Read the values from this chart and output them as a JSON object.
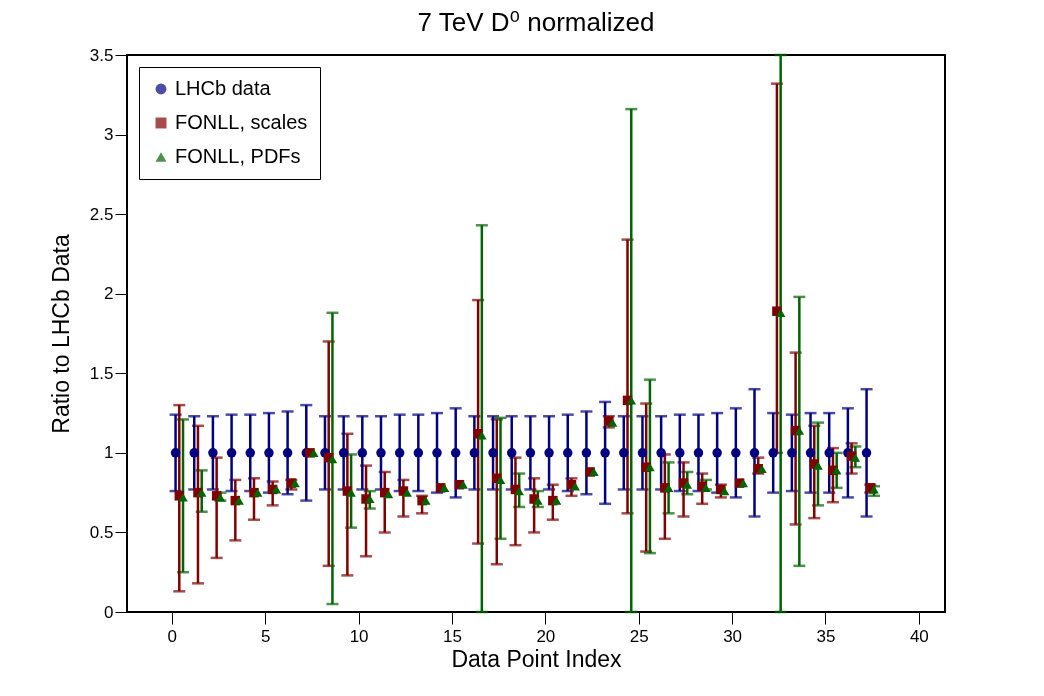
{
  "chart_data": {
    "type": "scatter",
    "title": "7 TeV D⁰ normalized",
    "xlabel": "Data Point Index",
    "ylabel": "Ratio to LHCb Data",
    "xlim": [
      -2.4,
      41.4
    ],
    "xticks": [
      0,
      5,
      10,
      15,
      20,
      25,
      30,
      35,
      40
    ],
    "ylim": [
      0,
      3.5
    ],
    "yticks": [
      0,
      0.5,
      1,
      1.5,
      2,
      2.5,
      3,
      3.5
    ],
    "grid": false,
    "legend": "top left",
    "series": [
      {
        "name": "LHCb data",
        "color": "#000080",
        "marker": "circle",
        "x": [
          0.2,
          1.2,
          2.2,
          3.2,
          4.2,
          5.2,
          6.2,
          7.2,
          8.2,
          9.2,
          10.2,
          11.2,
          12.2,
          13.2,
          14.2,
          15.2,
          16.2,
          17.2,
          18.2,
          19.2,
          20.2,
          21.2,
          22.2,
          23.2,
          24.2,
          25.2,
          26.2,
          27.2,
          28.2,
          29.2,
          30.2,
          31.2,
          32.2,
          33.2,
          34.2,
          35.2,
          36.2,
          37.2
        ],
        "values": [
          1,
          1,
          1,
          1,
          1,
          1,
          1,
          1,
          1,
          1,
          1,
          1,
          1,
          1,
          1,
          1,
          1,
          1,
          1,
          1,
          1,
          1,
          1,
          1,
          1,
          1,
          1,
          1,
          1,
          1,
          1,
          1,
          1,
          1,
          1,
          1,
          1,
          1
        ],
        "errors": [
          0.24,
          0.23,
          0.23,
          0.24,
          0.24,
          0.25,
          0.26,
          0.3,
          0.23,
          0.23,
          0.23,
          0.23,
          0.24,
          0.24,
          0.25,
          0.28,
          0.23,
          0.23,
          0.23,
          0.23,
          0.23,
          0.24,
          0.26,
          0.32,
          0.23,
          0.23,
          0.23,
          0.24,
          0.24,
          0.25,
          0.28,
          0.4,
          0.25,
          0.24,
          0.25,
          0.25,
          0.28,
          0.4
        ]
      },
      {
        "name": "FONLL, scales",
        "color": "#800000",
        "marker": "square",
        "x": [
          0.4,
          1.4,
          2.4,
          3.4,
          4.4,
          5.4,
          6.4,
          7.4,
          8.4,
          9.4,
          10.4,
          11.4,
          12.4,
          13.4,
          14.4,
          15.4,
          16.4,
          17.4,
          18.4,
          19.4,
          20.4,
          21.4,
          22.4,
          23.4,
          24.4,
          25.4,
          26.4,
          27.4,
          28.4,
          29.4,
          30.4,
          31.4,
          32.4,
          33.4,
          34.4,
          35.4,
          36.4,
          37.4
        ],
        "values": [
          0.73,
          0.75,
          0.73,
          0.7,
          0.75,
          0.77,
          0.81,
          1.0,
          0.97,
          0.76,
          0.71,
          0.75,
          0.76,
          0.7,
          0.78,
          0.8,
          1.12,
          0.84,
          0.77,
          0.71,
          0.7,
          0.8,
          0.88,
          1.2,
          1.33,
          0.91,
          0.78,
          0.81,
          0.79,
          0.77,
          0.81,
          0.9,
          1.89,
          1.14,
          0.93,
          0.89,
          0.98,
          0.78
        ],
        "errors": [
          [
            0.13,
            1.3
          ],
          [
            0.18,
            1.17
          ],
          [
            0.34,
            0.97
          ],
          [
            0.45,
            0.83
          ],
          [
            0.58,
            0.84
          ],
          [
            0.67,
            0.82
          ],
          [
            0.77,
            0.83
          ],
          null,
          [
            0.29,
            1.7
          ],
          [
            0.23,
            1.12
          ],
          [
            0.35,
            0.92
          ],
          [
            0.5,
            0.88
          ],
          [
            0.6,
            0.83
          ],
          [
            0.62,
            0.73
          ],
          null,
          null,
          [
            0.43,
            1.96
          ],
          [
            0.3,
            1.21
          ],
          [
            0.42,
            0.97
          ],
          [
            0.5,
            0.84
          ],
          [
            0.58,
            0.8
          ],
          [
            0.73,
            0.84
          ],
          null,
          [
            1.16,
            1.23
          ],
          [
            0.62,
            2.34
          ],
          [
            0.38,
            1.31
          ],
          [
            0.46,
            0.99
          ],
          [
            0.6,
            0.94
          ],
          [
            0.68,
            0.87
          ],
          [
            0.72,
            0.8
          ],
          null,
          [
            0.87,
            0.97
          ],
          [
            1.0,
            3.32
          ],
          [
            0.55,
            1.63
          ],
          [
            0.59,
            1.17
          ],
          [
            0.69,
            1.03
          ],
          [
            0.87,
            1.06
          ],
          [
            0.75,
            0.8
          ]
        ]
      },
      {
        "name": "FONLL, PDFs",
        "color": "#006400",
        "marker": "triangle",
        "x": [
          0.6,
          1.6,
          2.6,
          3.6,
          4.6,
          5.6,
          6.6,
          7.6,
          8.6,
          9.6,
          10.6,
          11.6,
          12.6,
          13.6,
          14.6,
          15.6,
          16.6,
          17.6,
          18.6,
          19.6,
          20.6,
          21.6,
          22.6,
          23.6,
          24.6,
          25.6,
          26.6,
          27.6,
          28.6,
          29.6,
          30.6,
          31.6,
          32.6,
          33.6,
          34.6,
          35.6,
          36.6,
          37.6
        ],
        "values": [
          0.72,
          0.75,
          0.72,
          0.7,
          0.75,
          0.77,
          0.81,
          1.0,
          0.96,
          0.75,
          0.71,
          0.74,
          0.75,
          0.7,
          0.78,
          0.8,
          1.11,
          0.83,
          0.76,
          0.7,
          0.7,
          0.79,
          0.88,
          1.19,
          1.33,
          0.91,
          0.78,
          0.8,
          0.78,
          0.76,
          0.81,
          0.9,
          1.88,
          1.14,
          0.92,
          0.89,
          0.97,
          0.77
        ],
        "errors": [
          [
            0.25,
            1.21
          ],
          [
            0.63,
            0.89
          ],
          [
            0.7,
            0.75
          ],
          null,
          null,
          null,
          null,
          null,
          [
            0.05,
            1.88
          ],
          [
            0.53,
            0.99
          ],
          [
            0.65,
            0.76
          ],
          null,
          null,
          null,
          null,
          null,
          [
            0,
            2.43
          ],
          [
            0.46,
            1.22
          ],
          [
            0.66,
            0.87
          ],
          [
            0.66,
            0.76
          ],
          null,
          null,
          null,
          null,
          [
            0,
            3.16
          ],
          [
            0.37,
            1.46
          ],
          [
            0.62,
            0.94
          ],
          [
            0.74,
            0.88
          ],
          [
            0.77,
            0.83
          ],
          null,
          null,
          null,
          [
            0,
            3.5
          ],
          [
            0.29,
            1.98
          ],
          [
            0.67,
            1.19
          ],
          [
            0.78,
            1.0
          ],
          [
            0.91,
            1.04
          ],
          [
            0.73,
            0.79
          ]
        ]
      }
    ]
  }
}
